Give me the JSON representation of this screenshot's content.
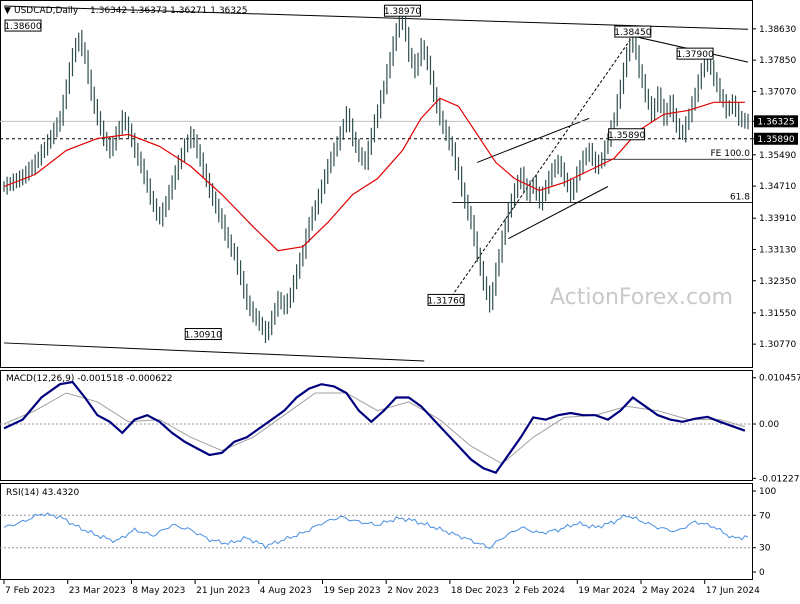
{
  "header": {
    "symbol": "USDCAD,Daily",
    "ohlc": "1.36342 1.36373 1.36271 1.36325"
  },
  "watermark": "ActionForex.com",
  "chart_data": [
    {
      "type": "candlestick",
      "title": "USDCAD,Daily",
      "ylim": [
        1.3025,
        1.391
      ],
      "yticks": [
        "1.38630",
        "1.37850",
        "1.37070",
        "1.36325",
        "1.35890",
        "1.35490",
        "1.34710",
        "1.33910",
        "1.33130",
        "1.32350",
        "1.31550",
        "1.30770"
      ],
      "xticks": [
        "7 Feb 2023",
        "23 Mar 2023",
        "8 May 2023",
        "21 Jun 2023",
        "4 Aug 2023",
        "19 Sep 2023",
        "2 Nov 2023",
        "18 Dec 2023",
        "2 Feb 2024",
        "19 Mar 2024",
        "2 May 2024",
        "17 Jun 2024"
      ],
      "close_path": [
        [
          0,
          1.347
        ],
        [
          6,
          1.3495
        ],
        [
          10,
          1.353
        ],
        [
          14,
          1.358
        ],
        [
          18,
          1.364
        ],
        [
          20,
          1.372
        ],
        [
          22,
          1.38
        ],
        [
          24,
          1.384
        ],
        [
          26,
          1.379
        ],
        [
          28,
          1.37
        ],
        [
          30,
          1.364
        ],
        [
          32,
          1.359
        ],
        [
          34,
          1.356
        ],
        [
          36,
          1.36
        ],
        [
          38,
          1.364
        ],
        [
          40,
          1.361
        ],
        [
          42,
          1.356
        ],
        [
          44,
          1.352
        ],
        [
          46,
          1.347
        ],
        [
          48,
          1.342
        ],
        [
          50,
          1.339
        ],
        [
          52,
          1.343
        ],
        [
          54,
          1.348
        ],
        [
          56,
          1.353
        ],
        [
          58,
          1.357
        ],
        [
          60,
          1.36
        ],
        [
          62,
          1.356
        ],
        [
          64,
          1.351
        ],
        [
          66,
          1.346
        ],
        [
          68,
          1.342
        ],
        [
          70,
          1.338
        ],
        [
          72,
          1.333
        ],
        [
          74,
          1.33
        ],
        [
          76,
          1.324
        ],
        [
          78,
          1.318
        ],
        [
          80,
          1.315
        ],
        [
          82,
          1.313
        ],
        [
          84,
          1.31
        ],
        [
          86,
          1.314
        ],
        [
          88,
          1.319
        ],
        [
          90,
          1.317
        ],
        [
          92,
          1.32
        ],
        [
          94,
          1.326
        ],
        [
          96,
          1.331
        ],
        [
          98,
          1.338
        ],
        [
          100,
          1.342
        ],
        [
          102,
          1.347
        ],
        [
          104,
          1.352
        ],
        [
          106,
          1.356
        ],
        [
          108,
          1.36
        ],
        [
          110,
          1.365
        ],
        [
          112,
          1.359
        ],
        [
          114,
          1.355
        ],
        [
          116,
          1.353
        ],
        [
          118,
          1.36
        ],
        [
          120,
          1.366
        ],
        [
          122,
          1.372
        ],
        [
          124,
          1.379
        ],
        [
          126,
          1.386
        ],
        [
          128,
          1.3897
        ],
        [
          130,
          1.38
        ],
        [
          132,
          1.376
        ],
        [
          134,
          1.382
        ],
        [
          136,
          1.378
        ],
        [
          138,
          1.37
        ],
        [
          140,
          1.364
        ],
        [
          142,
          1.36
        ],
        [
          144,
          1.356
        ],
        [
          146,
          1.35
        ],
        [
          148,
          1.343
        ],
        [
          150,
          1.338
        ],
        [
          152,
          1.33
        ],
        [
          154,
          1.323
        ],
        [
          156,
          1.3176
        ],
        [
          158,
          1.326
        ],
        [
          160,
          1.334
        ],
        [
          162,
          1.341
        ],
        [
          164,
          1.346
        ],
        [
          166,
          1.35
        ],
        [
          168,
          1.345
        ],
        [
          170,
          1.348
        ],
        [
          172,
          1.343
        ],
        [
          174,
          1.347
        ],
        [
          176,
          1.351
        ],
        [
          178,
          1.353
        ],
        [
          180,
          1.349
        ],
        [
          182,
          1.345
        ],
        [
          184,
          1.35
        ],
        [
          186,
          1.354
        ],
        [
          188,
          1.356
        ],
        [
          190,
          1.352
        ],
        [
          192,
          1.354
        ],
        [
          194,
          1.3589
        ],
        [
          196,
          1.364
        ],
        [
          198,
          1.372
        ],
        [
          200,
          1.38
        ],
        [
          202,
          1.3845
        ],
        [
          204,
          1.376
        ],
        [
          206,
          1.37
        ],
        [
          208,
          1.365
        ],
        [
          210,
          1.37
        ],
        [
          212,
          1.364
        ],
        [
          214,
          1.368
        ],
        [
          216,
          1.362
        ],
        [
          218,
          1.36
        ],
        [
          220,
          1.365
        ],
        [
          222,
          1.37
        ],
        [
          224,
          1.376
        ],
        [
          226,
          1.379
        ],
        [
          228,
          1.374
        ],
        [
          230,
          1.37
        ],
        [
          232,
          1.366
        ],
        [
          234,
          1.368
        ],
        [
          236,
          1.364
        ],
        [
          238,
          1.3632
        ]
      ],
      "ma_path": [
        [
          0,
          1.347
        ],
        [
          10,
          1.35
        ],
        [
          20,
          1.356
        ],
        [
          30,
          1.359
        ],
        [
          40,
          1.36
        ],
        [
          50,
          1.357
        ],
        [
          60,
          1.352
        ],
        [
          70,
          1.345
        ],
        [
          80,
          1.337
        ],
        [
          88,
          1.331
        ],
        [
          96,
          1.332
        ],
        [
          104,
          1.338
        ],
        [
          112,
          1.345
        ],
        [
          120,
          1.349
        ],
        [
          128,
          1.356
        ],
        [
          134,
          1.364
        ],
        [
          140,
          1.369
        ],
        [
          146,
          1.367
        ],
        [
          152,
          1.36
        ],
        [
          158,
          1.353
        ],
        [
          164,
          1.349
        ],
        [
          172,
          1.346
        ],
        [
          180,
          1.348
        ],
        [
          188,
          1.351
        ],
        [
          196,
          1.354
        ],
        [
          204,
          1.361
        ],
        [
          212,
          1.365
        ],
        [
          220,
          1.366
        ],
        [
          228,
          1.368
        ],
        [
          238,
          1.368
        ]
      ],
      "levels": [
        {
          "label": "1.38600",
          "value": 1.386,
          "bar": 30,
          "align": "left"
        },
        {
          "label": "1.38970",
          "value": 1.3897,
          "bar": 128,
          "align": "center"
        },
        {
          "label": "1.38450",
          "value": 1.3845,
          "bar": 202,
          "align": "center"
        },
        {
          "label": "1.37900",
          "value": 1.379,
          "bar": 222,
          "align": "center"
        },
        {
          "label": "1.35890",
          "value": 1.3589,
          "bar": 200,
          "align": "center"
        },
        {
          "label": "1.31760",
          "value": 1.3176,
          "bar": 142,
          "align": "center"
        },
        {
          "label": "1.30910",
          "value": 1.3091,
          "bar": 64,
          "align": "center"
        }
      ],
      "fibs": [
        {
          "label": "FE 100.0",
          "value": 1.3538
        },
        {
          "label": "61.8",
          "value": 1.343
        }
      ],
      "current_price": "1.36325",
      "support_price": "1.35890"
    },
    {
      "type": "line",
      "title": "MACD(12,26,9) -0.001518 -0.000622",
      "yticks": [
        "0.010457",
        "0.00",
        "-0.012276"
      ],
      "ylim": [
        -0.0122,
        0.0104
      ],
      "macd_path": [
        [
          0,
          -0.001
        ],
        [
          6,
          0.001
        ],
        [
          12,
          0.006
        ],
        [
          18,
          0.009
        ],
        [
          22,
          0.0095
        ],
        [
          26,
          0.006
        ],
        [
          30,
          0.002
        ],
        [
          34,
          0.0005
        ],
        [
          38,
          -0.002
        ],
        [
          42,
          0.001
        ],
        [
          46,
          0.002
        ],
        [
          50,
          0.0005
        ],
        [
          54,
          -0.002
        ],
        [
          58,
          -0.004
        ],
        [
          62,
          -0.0055
        ],
        [
          66,
          -0.007
        ],
        [
          70,
          -0.0065
        ],
        [
          74,
          -0.004
        ],
        [
          78,
          -0.003
        ],
        [
          82,
          -0.001
        ],
        [
          86,
          0.001
        ],
        [
          90,
          0.003
        ],
        [
          94,
          0.006
        ],
        [
          98,
          0.008
        ],
        [
          102,
          0.009
        ],
        [
          106,
          0.0085
        ],
        [
          110,
          0.007
        ],
        [
          114,
          0.003
        ],
        [
          118,
          0.0005
        ],
        [
          122,
          0.003
        ],
        [
          126,
          0.006
        ],
        [
          130,
          0.006
        ],
        [
          134,
          0.004
        ],
        [
          138,
          0.001
        ],
        [
          142,
          -0.002
        ],
        [
          146,
          -0.005
        ],
        [
          150,
          -0.008
        ],
        [
          154,
          -0.01
        ],
        [
          158,
          -0.011
        ],
        [
          162,
          -0.007
        ],
        [
          166,
          -0.003
        ],
        [
          170,
          0.0015
        ],
        [
          174,
          0.001
        ],
        [
          178,
          0.002
        ],
        [
          182,
          0.0025
        ],
        [
          186,
          0.002
        ],
        [
          190,
          0.002
        ],
        [
          194,
          0.001
        ],
        [
          198,
          0.003
        ],
        [
          202,
          0.006
        ],
        [
          206,
          0.004
        ],
        [
          210,
          0.002
        ],
        [
          214,
          0.001
        ],
        [
          218,
          0.0005
        ],
        [
          222,
          0.0012
        ],
        [
          226,
          0.0016
        ],
        [
          230,
          0.0005
        ],
        [
          234,
          -0.0005
        ],
        [
          238,
          -0.0015
        ]
      ],
      "signal_path": [
        [
          0,
          0
        ],
        [
          10,
          0.003
        ],
        [
          20,
          0.007
        ],
        [
          30,
          0.005
        ],
        [
          40,
          0.0005
        ],
        [
          50,
          0.001
        ],
        [
          60,
          -0.003
        ],
        [
          70,
          -0.006
        ],
        [
          80,
          -0.003
        ],
        [
          90,
          0.002
        ],
        [
          100,
          0.007
        ],
        [
          110,
          0.007
        ],
        [
          120,
          0.003
        ],
        [
          130,
          0.005
        ],
        [
          140,
          0.001
        ],
        [
          150,
          -0.005
        ],
        [
          160,
          -0.009
        ],
        [
          170,
          -0.003
        ],
        [
          180,
          0.0015
        ],
        [
          190,
          0.002
        ],
        [
          200,
          0.004
        ],
        [
          210,
          0.003
        ],
        [
          220,
          0.001
        ],
        [
          230,
          0.001
        ],
        [
          238,
          -0.0006
        ]
      ]
    },
    {
      "type": "line",
      "title": "RSI(14) 43.4320",
      "yticks": [
        "100",
        "70",
        "30",
        "0"
      ],
      "ylim": [
        0,
        100
      ],
      "levels": [
        70,
        30
      ],
      "rsi_path": [
        [
          0,
          55
        ],
        [
          6,
          62
        ],
        [
          12,
          72
        ],
        [
          18,
          68
        ],
        [
          24,
          55
        ],
        [
          30,
          45
        ],
        [
          36,
          38
        ],
        [
          42,
          52
        ],
        [
          48,
          45
        ],
        [
          54,
          58
        ],
        [
          60,
          52
        ],
        [
          66,
          40
        ],
        [
          72,
          35
        ],
        [
          78,
          42
        ],
        [
          84,
          32
        ],
        [
          90,
          40
        ],
        [
          96,
          48
        ],
        [
          102,
          60
        ],
        [
          108,
          68
        ],
        [
          114,
          62
        ],
        [
          120,
          58
        ],
        [
          126,
          66
        ],
        [
          130,
          65
        ],
        [
          136,
          58
        ],
        [
          142,
          50
        ],
        [
          148,
          42
        ],
        [
          152,
          36
        ],
        [
          156,
          30
        ],
        [
          160,
          42
        ],
        [
          166,
          55
        ],
        [
          172,
          48
        ],
        [
          178,
          52
        ],
        [
          184,
          60
        ],
        [
          190,
          55
        ],
        [
          196,
          62
        ],
        [
          200,
          70
        ],
        [
          204,
          64
        ],
        [
          210,
          55
        ],
        [
          216,
          50
        ],
        [
          222,
          62
        ],
        [
          228,
          56
        ],
        [
          234,
          42
        ],
        [
          238,
          43
        ]
      ]
    }
  ]
}
